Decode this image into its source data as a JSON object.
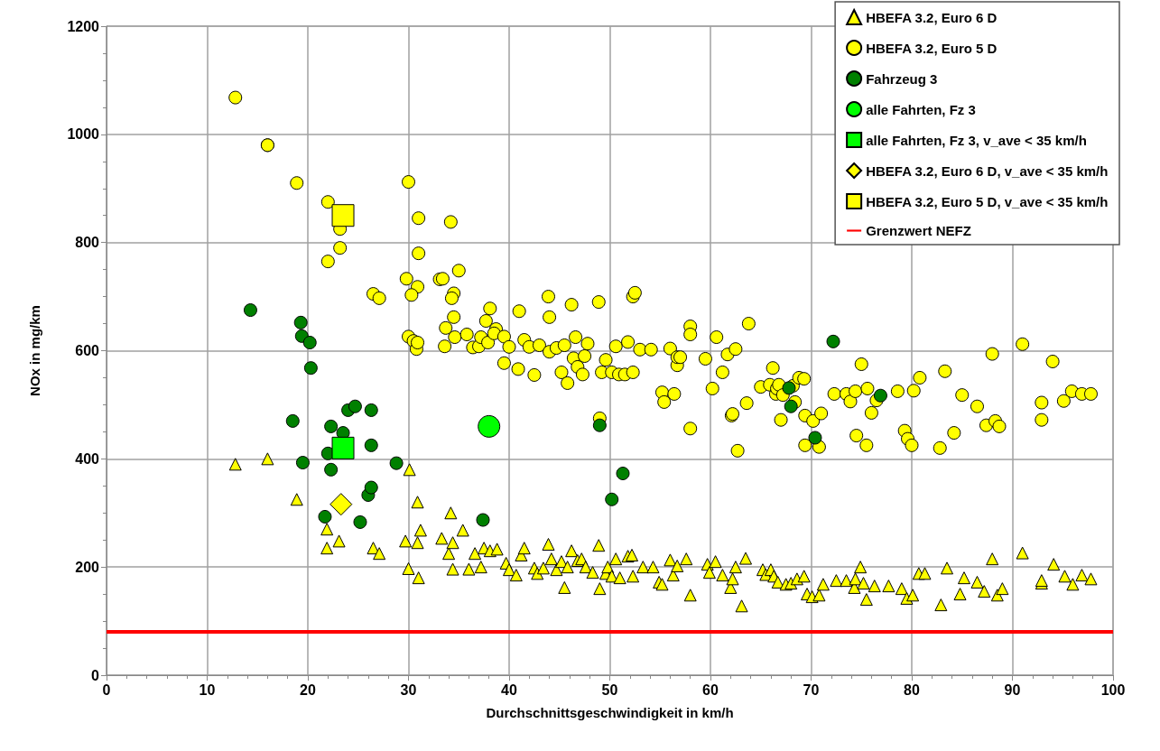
{
  "chart_data": {
    "type": "scatter",
    "xlabel": "Durchschnittsgeschwindigkeit in km/h",
    "ylabel": "NOx in mg/km",
    "xlim": [
      0,
      100
    ],
    "xticks": [
      0,
      10,
      20,
      30,
      40,
      50,
      60,
      70,
      80,
      90,
      100
    ],
    "ylim": [
      0,
      1200
    ],
    "yticks": [
      0,
      200,
      400,
      600,
      800,
      1000,
      1200
    ],
    "grid": true,
    "legend": "top right",
    "series": [
      {
        "name": "HBEFA 3.2, Euro 6 D",
        "color": "#ffff00",
        "marker": "triangle",
        "x": [
          12.8,
          16,
          18.9,
          21.9,
          21.9,
          23.1,
          26.5,
          27.1,
          29.7,
          30,
          30.1,
          30.9,
          30.9,
          31,
          31.2,
          33.3,
          34,
          34.2,
          34.4,
          34.4,
          35.4,
          36,
          36.6,
          37.2,
          37.5,
          38.1,
          38.8,
          39.7,
          40,
          40.7,
          41.2,
          41.5,
          42.5,
          42.8,
          43.4,
          43.9,
          44.2,
          44.7,
          45.2,
          45.5,
          45.8,
          46.2,
          46.8,
          47.2,
          47.6,
          48.3,
          48.9,
          49,
          49.6,
          49.8,
          50.2,
          50.6,
          51,
          51.8,
          52.2,
          52.3,
          53.3,
          54.3,
          54.9,
          55.2,
          56,
          56.3,
          56.7,
          57.6,
          58,
          59.7,
          59.9,
          60.5,
          61.2,
          62,
          62.2,
          62.5,
          63.1,
          63.5,
          65.2,
          65.5,
          66,
          66.3,
          66.7,
          67.5,
          68,
          68.6,
          69.3,
          69.6,
          70.1,
          70.8,
          71.2,
          72.5,
          73.5,
          74.3,
          74.4,
          74.9,
          75.2,
          75.5,
          76.3,
          77.7,
          79,
          79.5,
          80.1,
          80.7,
          81.3,
          82.9,
          83.5,
          84.8,
          85.2,
          86.5,
          87.2,
          88,
          88.5,
          89,
          91,
          92.9,
          92.9,
          94.1,
          95.2,
          96,
          96.9,
          97.8
        ],
        "values": [
          390,
          400,
          325,
          270,
          235,
          248,
          235,
          225,
          248,
          197,
          380,
          320,
          245,
          180,
          268,
          253,
          225,
          300,
          245,
          196,
          268,
          196,
          225,
          200,
          235,
          230,
          233,
          207,
          195,
          185,
          222,
          235,
          198,
          188,
          198,
          242,
          215,
          195,
          210,
          162,
          200,
          230,
          212,
          215,
          200,
          190,
          240,
          160,
          188,
          200,
          183,
          215,
          180,
          220,
          222,
          183,
          200,
          200,
          172,
          168,
          213,
          185,
          202,
          215,
          148,
          205,
          190,
          210,
          185,
          162,
          178,
          200,
          128,
          216,
          195,
          186,
          195,
          183,
          172,
          168,
          170,
          178,
          183,
          150,
          145,
          148,
          168,
          175,
          175,
          162,
          178,
          200,
          170,
          140,
          165,
          165,
          160,
          142,
          148,
          188,
          188,
          130,
          198,
          150,
          180,
          172,
          155,
          215,
          148,
          160,
          226,
          170,
          175,
          205,
          183,
          168,
          185,
          178
        ]
      },
      {
        "name": "HBEFA 3.2, Euro 5 D",
        "color": "#ffff00",
        "marker": "circle",
        "x": [
          12.8,
          16,
          16,
          18.9,
          22,
          23.2,
          22,
          23.2,
          30,
          31,
          34.2,
          31,
          29.8,
          30.9,
          33.1,
          33.4,
          35,
          26.5,
          27.1,
          34.5,
          34.3,
          30.3,
          30,
          30.5,
          30.8,
          30.9,
          33.7,
          34.5,
          33.6,
          34.6,
          35.8,
          36.4,
          37,
          37.2,
          37.7,
          38.1,
          37.9,
          38.7,
          38.5,
          39.5,
          40,
          39.5,
          41,
          40.9,
          41.5,
          42,
          42.5,
          43,
          43.9,
          44,
          44,
          44.7,
          45.2,
          45.5,
          45.8,
          46.2,
          46.4,
          46.6,
          46.8,
          47.3,
          47.5,
          47.8,
          48.9,
          49.2,
          49,
          49.6,
          50.2,
          50.6,
          50.9,
          51.5,
          51.8,
          52.3,
          52.5,
          52.3,
          53,
          54.1,
          55.2,
          55.4,
          56,
          56.4,
          56.7,
          56.7,
          57,
          58,
          58,
          58,
          59.5,
          60.2,
          60.6,
          61.2,
          61.7,
          62.1,
          62.2,
          62.5,
          62.7,
          63.8,
          63.6,
          65,
          65.9,
          66.2,
          66.5,
          66.6,
          66.8,
          67,
          67.2,
          68.2,
          68.4,
          68.8,
          69.3,
          69.4,
          69.4,
          70.2,
          70.8,
          71,
          72.3,
          73.5,
          73.9,
          74.4,
          74.5,
          75,
          75.5,
          75.6,
          76,
          76.5,
          78.6,
          79.3,
          79.6,
          80,
          80.2,
          80.8,
          82.8,
          83.3,
          84.2,
          85,
          86.5,
          87.4,
          88,
          88.3,
          88.7,
          91,
          92.9,
          92.9,
          94,
          95.1,
          95.9,
          96.9,
          97.8
        ],
        "values": [
          1068,
          980,
          980,
          910,
          875,
          825,
          765,
          790,
          912,
          845,
          838,
          780,
          733,
          718,
          732,
          733,
          748,
          705,
          697,
          706,
          697,
          703,
          626,
          618,
          603,
          615,
          642,
          662,
          608,
          625,
          630,
          606,
          608,
          625,
          655,
          678,
          615,
          640,
          632,
          626,
          607,
          577,
          673,
          566,
          620,
          607,
          555,
          610,
          700,
          662,
          598,
          605,
          560,
          610,
          540,
          685,
          586,
          625,
          570,
          556,
          590,
          613,
          690,
          560,
          475,
          583,
          560,
          608,
          556,
          556,
          616,
          700,
          707,
          560,
          602,
          602,
          523,
          505,
          604,
          520,
          573,
          588,
          588,
          645,
          630,
          456,
          585,
          530,
          625,
          560,
          593,
          480,
          483,
          603,
          415,
          650,
          503,
          533,
          537,
          568,
          520,
          530,
          537,
          472,
          518,
          535,
          505,
          550,
          548,
          480,
          425,
          470,
          422,
          484,
          520,
          520,
          506,
          525,
          443,
          575,
          425,
          530,
          485,
          508,
          525,
          452,
          437,
          425,
          526,
          550,
          420,
          562,
          448,
          518,
          497,
          462,
          594,
          470,
          460,
          612,
          504,
          472,
          580,
          507,
          525,
          520,
          520
        ]
      },
      {
        "name": "Fahrzeug 3",
        "color": "#008000",
        "marker": "circle",
        "x": [
          14.3,
          19.3,
          19.4,
          20.2,
          20.3,
          18.5,
          19.5,
          22.3,
          23.5,
          24,
          24.7,
          26.3,
          26.3,
          22,
          22.3,
          26,
          26.3,
          28.8,
          21.7,
          25.2,
          37.4,
          49,
          50.2,
          51.3,
          67.8,
          68,
          72.2,
          76.9,
          70.4
        ],
        "values": [
          675,
          652,
          627,
          615,
          568,
          470,
          393,
          460,
          448,
          490,
          497,
          490,
          425,
          410,
          380,
          333,
          347,
          392,
          293,
          283,
          287,
          462,
          325,
          373,
          531,
          497,
          617,
          517,
          439
        ]
      },
      {
        "name": "alle Fahrten, Fz 3",
        "color": "#00ff00",
        "marker": "circle",
        "x": [
          38
        ],
        "values": [
          460
        ]
      },
      {
        "name": "alle Fahrten, Fz 3, v_ave < 35 km/h",
        "color": "#00ff00",
        "marker": "square",
        "x": [
          23.5
        ],
        "values": [
          420
        ]
      },
      {
        "name": "HBEFA 3.2, Euro 6 D, v_ave < 35 km/h",
        "color": "#ffff00",
        "marker": "diamond",
        "x": [
          23.3
        ],
        "values": [
          316
        ]
      },
      {
        "name": "HBEFA 3.2, Euro 5 D, v_ave < 35 km/h",
        "color": "#ffff00",
        "marker": "square",
        "x": [
          23.5
        ],
        "values": [
          850
        ]
      }
    ],
    "ref_lines": [
      {
        "axis": "y",
        "value": 80,
        "label": "Grenzwert NEFZ",
        "color": "#ff0000",
        "line_style": "solid"
      }
    ]
  }
}
